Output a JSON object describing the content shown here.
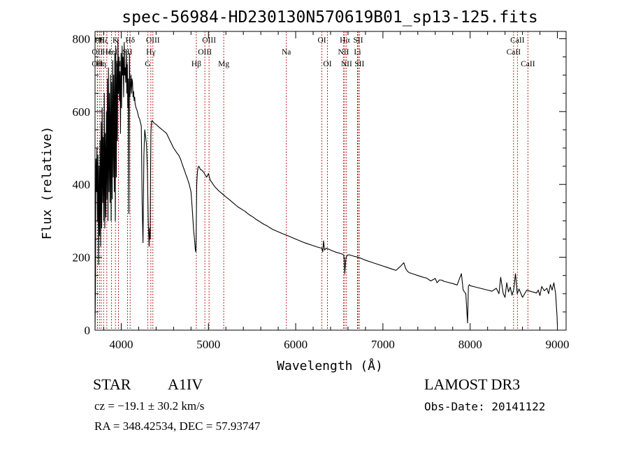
{
  "chart_data": {
    "type": "line",
    "title": "spec-56984-HD230130N570619B01_sp13-125.fits",
    "xlabel": "Wavelength (Å)",
    "ylabel": "Flux (relative)",
    "xlim": [
      3700,
      9100
    ],
    "ylim": [
      0,
      820
    ],
    "xticks": [
      4000,
      5000,
      6000,
      7000,
      8000,
      9000
    ],
    "yticks": [
      0,
      200,
      400,
      600,
      800
    ],
    "grid": false,
    "series": [
      {
        "name": "Flux",
        "x": [
          3700,
          3705,
          3710,
          3716,
          3722,
          3728,
          3734,
          3740,
          3746,
          3752,
          3758,
          3764,
          3770,
          3776,
          3782,
          3788,
          3794,
          3800,
          3806,
          3812,
          3818,
          3824,
          3830,
          3836,
          3842,
          3848,
          3854,
          3860,
          3866,
          3872,
          3878,
          3884,
          3890,
          3896,
          3902,
          3908,
          3914,
          3920,
          3926,
          3932,
          3938,
          3944,
          3950,
          3956,
          3962,
          3968,
          3974,
          3980,
          3986,
          3992,
          3998,
          4004,
          4010,
          4016,
          4022,
          4028,
          4034,
          4040,
          4046,
          4052,
          4058,
          4064,
          4070,
          4076,
          4082,
          4088,
          4094,
          4100,
          4106,
          4112,
          4118,
          4124,
          4130,
          4136,
          4142,
          4148,
          4154,
          4160,
          4170,
          4180,
          4190,
          4200,
          4210,
          4220,
          4230,
          4240,
          4250,
          4260,
          4270,
          4280,
          4290,
          4300,
          4310,
          4320,
          4326,
          4332,
          4336,
          4340,
          4344,
          4348,
          4352,
          4358,
          4364,
          4370,
          4380,
          4390,
          4400,
          4420,
          4440,
          4460,
          4480,
          4500,
          4520,
          4540,
          4560,
          4580,
          4600,
          4620,
          4640,
          4660,
          4680,
          4700,
          4720,
          4740,
          4760,
          4780,
          4800,
          4815,
          4830,
          4840,
          4850,
          4856,
          4861,
          4866,
          4872,
          4880,
          4890,
          4900,
          4910,
          4920,
          4935,
          4950,
          4965,
          4980,
          5000,
          5020,
          5040,
          5060,
          5080,
          5100,
          5120,
          5140,
          5160,
          5180,
          5200,
          5220,
          5240,
          5260,
          5280,
          5300,
          5320,
          5340,
          5360,
          5380,
          5400,
          5420,
          5440,
          5460,
          5480,
          5500,
          5520,
          5540,
          5560,
          5580,
          5600,
          5620,
          5640,
          5660,
          5680,
          5700,
          5720,
          5740,
          5760,
          5780,
          5800,
          5820,
          5840,
          5860,
          5880,
          5900,
          5920,
          5940,
          5960,
          5980,
          6000,
          6050,
          6100,
          6150,
          6200,
          6250,
          6280,
          6300,
          6310,
          6320,
          6330,
          6350,
          6380,
          6400,
          6430,
          6460,
          6490,
          6520,
          6540,
          6550,
          6556,
          6563,
          6570,
          6578,
          6590,
          6610,
          6640,
          6680,
          6720,
          6760,
          6800,
          6850,
          6900,
          6950,
          7000,
          7050,
          7100,
          7150,
          7200,
          7240,
          7260,
          7280,
          7300,
          7350,
          7400,
          7450,
          7500,
          7550,
          7600,
          7620,
          7650,
          7680,
          7700,
          7750,
          7800,
          7850,
          7900,
          7920,
          7950,
          7970,
          7980,
          7990,
          8000,
          8050,
          8100,
          8150,
          8200,
          8250,
          8300,
          8330,
          8350,
          8380,
          8400,
          8420,
          8440,
          8460,
          8480,
          8500,
          8520,
          8540,
          8560,
          8600,
          8650,
          8700,
          8730,
          8760,
          8780,
          8800,
          8820,
          8850,
          8880,
          8900,
          8920,
          8940,
          8960,
          8980,
          8990,
          8996,
          9000
        ],
        "y": [
          5,
          130,
          470,
          380,
          500,
          300,
          480,
          180,
          450,
          260,
          520,
          230,
          570,
          280,
          610,
          350,
          530,
          300,
          650,
          280,
          540,
          310,
          600,
          360,
          690,
          300,
          720,
          380,
          650,
          350,
          700,
          300,
          680,
          360,
          740,
          420,
          700,
          380,
          760,
          300,
          780,
          420,
          730,
          520,
          800,
          650,
          750,
          630,
          710,
          540,
          760,
          610,
          780,
          700,
          750,
          640,
          790,
          700,
          720,
          680,
          770,
          650,
          730,
          610,
          690,
          320,
          760,
          640,
          670,
          700,
          650,
          690,
          680,
          640,
          655,
          630,
          640,
          620,
          610,
          605,
          595,
          585,
          580,
          570,
          560,
          350,
          240,
          480,
          550,
          530,
          510,
          440,
          300,
          230,
          280,
          250,
          420,
          540,
          560,
          570,
          575,
          575,
          572,
          570,
          568,
          566,
          565,
          560,
          556,
          552,
          548,
          544,
          540,
          530,
          520,
          510,
          500,
          493,
          486,
          480,
          470,
          455,
          442,
          428,
          415,
          400,
          380,
          330,
          275,
          250,
          220,
          215,
          300,
          400,
          430,
          446,
          450,
          445,
          440,
          440,
          436,
          432,
          425,
          420,
          430,
          412,
          405,
          398,
          392,
          387,
          382,
          378,
          374,
          370,
          366,
          362,
          358,
          354,
          350,
          346,
          342,
          338,
          335,
          332,
          329,
          326,
          322,
          318,
          315,
          312,
          309,
          305,
          302,
          299,
          296,
          293,
          290,
          288,
          285,
          282,
          279,
          276,
          274,
          272,
          270,
          268,
          266,
          264,
          262,
          260,
          258,
          256,
          254,
          252,
          250,
          245,
          240,
          236,
          232,
          228,
          226,
          225,
          215,
          245,
          220,
          225,
          222,
          220,
          217,
          214,
          212,
          210,
          208,
          206,
          195,
          155,
          180,
          200,
          205,
          207,
          205,
          202,
          200,
          196,
          192,
          188,
          184,
          180,
          176,
          172,
          168,
          164,
          175,
          185,
          170,
          162,
          158,
          154,
          150,
          146,
          143,
          135,
          142,
          130,
          138,
          137,
          134,
          131,
          128,
          124,
          155,
          110,
          100,
          20,
          120,
          125,
          122,
          119,
          116,
          113,
          110,
          107,
          115,
          100,
          145,
          100,
          90,
          130,
          105,
          118,
          96,
          112,
          155,
          100,
          113,
          90,
          110,
          106,
          104,
          102,
          110,
          95,
          120,
          108,
          115,
          100,
          125,
          110,
          130,
          100,
          60,
          40,
          15
        ]
      }
    ],
    "line_labels": [
      {
        "x": 3727,
        "label": "OII",
        "row": 2
      },
      {
        "x": 3727,
        "label": "OII",
        "row": 3
      },
      {
        "x": 3750,
        "label": "Hθ",
        "row": 1
      },
      {
        "x": 3770,
        "label": "Hη",
        "row": 3
      },
      {
        "x": 3798,
        "label": "Hζ",
        "row": 1
      },
      {
        "x": 3835,
        "label": "Hε",
        "row": 2
      },
      {
        "x": 3889,
        "label": "HeI",
        "row": 2
      },
      {
        "x": 3934,
        "label": "K",
        "row": 1
      },
      {
        "x": 3968,
        "label": "H",
        "row": 3
      },
      {
        "x": 4072,
        "label": "SII",
        "row": 2
      },
      {
        "x": 4102,
        "label": "Hδ",
        "row": 1
      },
      {
        "x": 4304,
        "label": "G",
        "row": 3
      },
      {
        "x": 4340,
        "label": "Hγ",
        "row": 2
      },
      {
        "x": 4363,
        "label": "OIII",
        "row": 1
      },
      {
        "x": 4861,
        "label": "Hβ",
        "row": 3
      },
      {
        "x": 4959,
        "label": "OIII",
        "row": 2
      },
      {
        "x": 5007,
        "label": "OIII",
        "row": 1
      },
      {
        "x": 5175,
        "label": "Mg",
        "row": 3
      },
      {
        "x": 5893,
        "label": "Na",
        "row": 2
      },
      {
        "x": 6300,
        "label": "OI",
        "row": 1
      },
      {
        "x": 6364,
        "label": "OI",
        "row": 3
      },
      {
        "x": 6548,
        "label": "NII",
        "row": 2
      },
      {
        "x": 6563,
        "label": "Hα",
        "row": 1
      },
      {
        "x": 6583,
        "label": "NII",
        "row": 3
      },
      {
        "x": 6708,
        "label": "Li",
        "row": 2
      },
      {
        "x": 6717,
        "label": "SII",
        "row": 1
      },
      {
        "x": 6731,
        "label": "SII",
        "row": 3
      },
      {
        "x": 8498,
        "label": "CaII",
        "row": 2
      },
      {
        "x": 8542,
        "label": "CaII",
        "row": 1
      },
      {
        "x": 8662,
        "label": "CaII",
        "row": 3
      }
    ]
  },
  "info": {
    "class_label": "STAR",
    "subclass": "A1IV",
    "survey": "LAMOST DR3",
    "redshift_text": "cz = −19.1 ± 30.2 km/s",
    "obs_date": "Obs-Date: 20141122",
    "coords": "RA = 348.42534, DEC =  57.93747"
  }
}
